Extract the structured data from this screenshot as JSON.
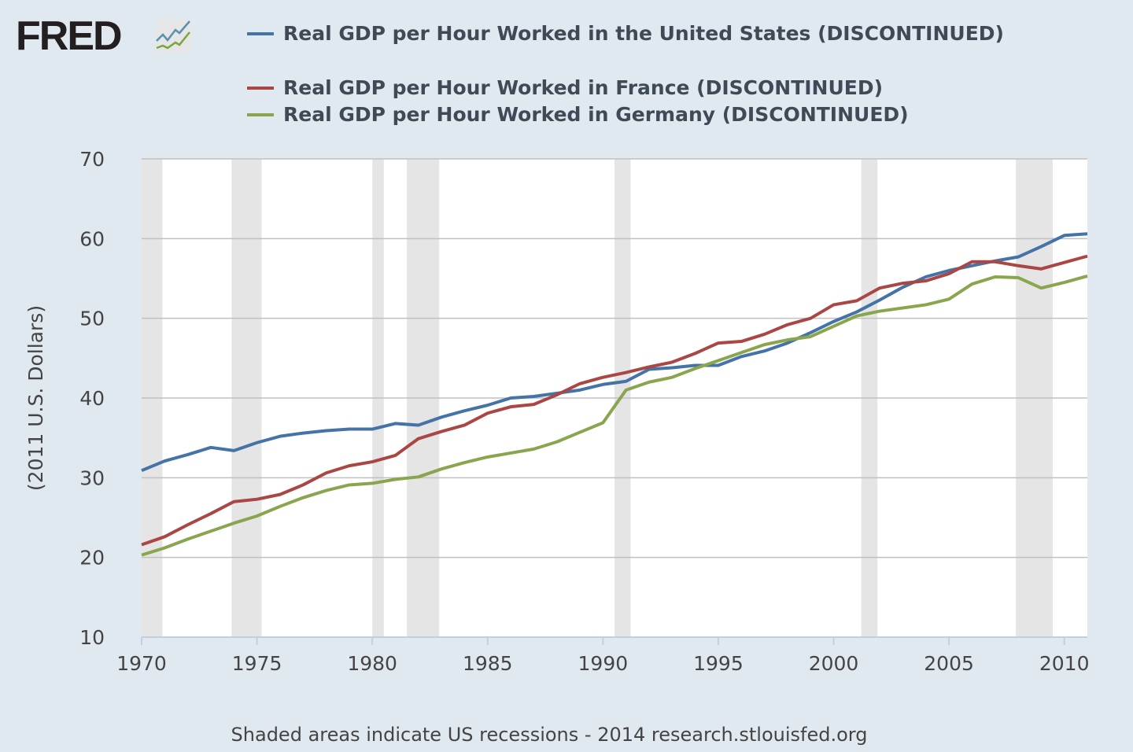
{
  "logo": {
    "text": "FRED"
  },
  "footer": "Shaded areas indicate US recessions - 2014 research.stlouisfed.org",
  "chart_data": {
    "type": "line",
    "title": "",
    "xlabel": "",
    "ylabel": "(2011 U.S. Dollars)",
    "xlim": [
      1970,
      2011
    ],
    "ylim": [
      10,
      70
    ],
    "yticks": [
      10,
      20,
      30,
      40,
      50,
      60,
      70
    ],
    "xticks": [
      1970,
      1975,
      1980,
      1985,
      1990,
      1995,
      2000,
      2005,
      2010
    ],
    "grid": true,
    "legend_position": "top",
    "background": "#e1e9f0",
    "recessions": [
      [
        1969.9,
        1970.9
      ],
      [
        1973.9,
        1975.2
      ],
      [
        1980.0,
        1980.5
      ],
      [
        1981.5,
        1982.9
      ],
      [
        1990.5,
        1991.2
      ],
      [
        2001.2,
        2001.9
      ],
      [
        2007.9,
        2009.5
      ]
    ],
    "x": [
      1970,
      1971,
      1972,
      1973,
      1974,
      1975,
      1976,
      1977,
      1978,
      1979,
      1980,
      1981,
      1982,
      1983,
      1984,
      1985,
      1986,
      1987,
      1988,
      1989,
      1990,
      1991,
      1992,
      1993,
      1994,
      1995,
      1996,
      1997,
      1998,
      1999,
      2000,
      2001,
      2002,
      2003,
      2004,
      2005,
      2006,
      2007,
      2008,
      2009,
      2010,
      2011
    ],
    "series": [
      {
        "name": "Real GDP per Hour Worked in the United States (DISCONTINUED)",
        "color": "#4572a7",
        "values": [
          30.9,
          32.1,
          32.9,
          33.8,
          33.4,
          34.4,
          35.2,
          35.6,
          35.9,
          36.1,
          36.1,
          36.8,
          36.6,
          37.6,
          38.4,
          39.1,
          40.0,
          40.2,
          40.6,
          41.0,
          41.7,
          42.1,
          43.6,
          43.8,
          44.1,
          44.1,
          45.2,
          45.9,
          46.9,
          48.2,
          49.6,
          50.8,
          52.3,
          53.9,
          55.2,
          56.0,
          56.6,
          57.2,
          57.7,
          59.0,
          60.4,
          60.6
        ]
      },
      {
        "name": "Real GDP per Hour Worked in France (DISCONTINUED)",
        "color": "#aa4643",
        "values": [
          21.6,
          22.6,
          24.1,
          25.5,
          27.0,
          27.3,
          27.9,
          29.1,
          30.6,
          31.5,
          32.0,
          32.8,
          34.9,
          35.8,
          36.6,
          38.1,
          38.9,
          39.2,
          40.4,
          41.8,
          42.6,
          43.2,
          43.9,
          44.5,
          45.6,
          46.9,
          47.1,
          48.0,
          49.2,
          50.0,
          51.7,
          52.2,
          53.8,
          54.4,
          54.7,
          55.6,
          57.1,
          57.1,
          56.6,
          56.2,
          57.0,
          57.8
        ]
      },
      {
        "name": "Real GDP per Hour Worked in Germany (DISCONTINUED)",
        "color": "#89a54e",
        "values": [
          20.3,
          21.2,
          22.3,
          23.3,
          24.3,
          25.2,
          26.4,
          27.5,
          28.4,
          29.1,
          29.3,
          29.8,
          30.1,
          31.1,
          31.9,
          32.6,
          33.1,
          33.6,
          34.5,
          35.7,
          36.9,
          41.0,
          42.0,
          42.6,
          43.7,
          44.7,
          45.7,
          46.7,
          47.3,
          47.7,
          49.0,
          50.3,
          50.9,
          51.3,
          51.7,
          52.4,
          54.3,
          55.2,
          55.1,
          53.8,
          54.5,
          55.3
        ]
      }
    ]
  }
}
